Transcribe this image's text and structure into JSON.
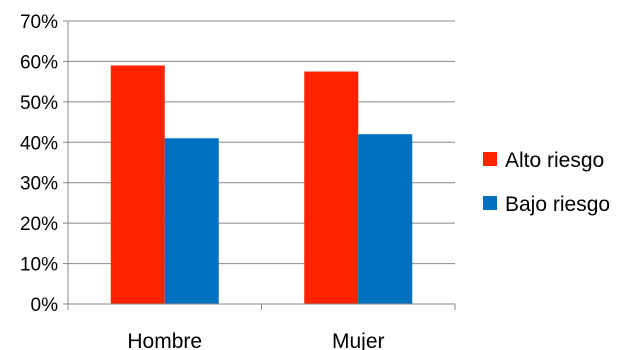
{
  "chart_data": {
    "type": "bar",
    "categories": [
      "Hombre",
      "Mujer"
    ],
    "series": [
      {
        "name": "Alto riesgo",
        "values": [
          0.59,
          0.575
        ],
        "color": "#ff2200"
      },
      {
        "name": "Bajo riesgo",
        "values": [
          0.41,
          0.42
        ],
        "color": "#0070c0"
      }
    ],
    "ylim": [
      0,
      0.7
    ],
    "yticks": [
      "0%",
      "10%",
      "20%",
      "30%",
      "40%",
      "50%",
      "60%",
      "70%"
    ],
    "grid": true,
    "legend": "right"
  }
}
